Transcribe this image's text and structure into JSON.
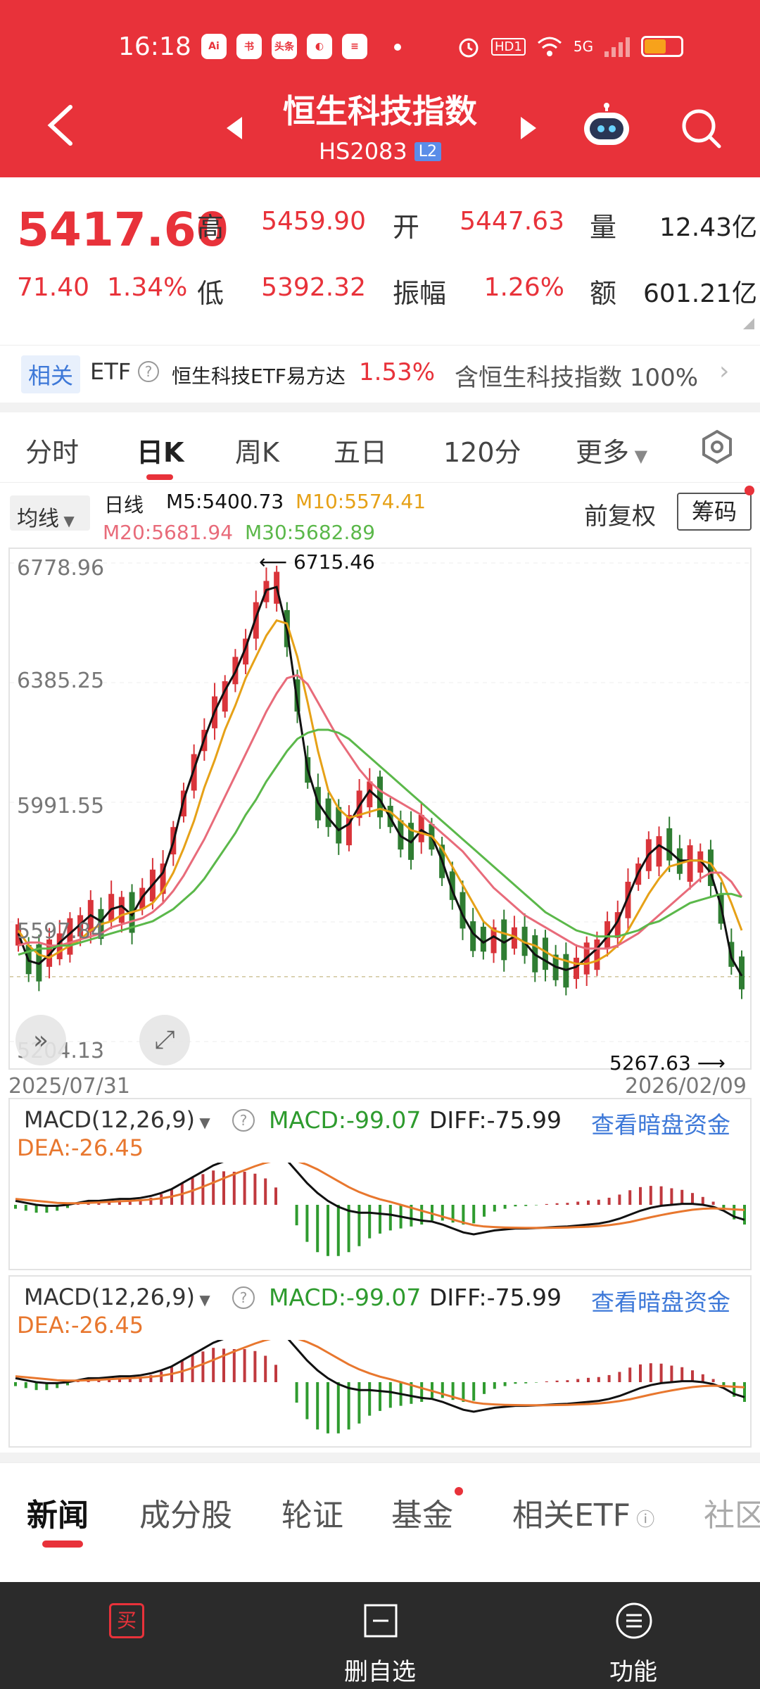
{
  "status_bar": {
    "time": "16:18",
    "apps": [
      "Ai",
      "书",
      "头条",
      "◐",
      "≡"
    ],
    "indicators": [
      "alarm-icon",
      "HD1",
      "wifi-icon",
      "5G",
      "signal-icon",
      "battery-icon"
    ],
    "hd": "HD1",
    "net": "5G"
  },
  "header": {
    "title": "恒生科技指数",
    "code": "HS2083",
    "level": "L2",
    "colors": {
      "bg": "#e8323a"
    }
  },
  "quote": {
    "price": "5417.60",
    "change": "71.40",
    "change_pct": "1.34%",
    "high_label": "高",
    "high": "5459.90",
    "open_label": "开",
    "open": "5447.63",
    "volume_label": "量",
    "volume": "12.43亿",
    "low_label": "低",
    "low": "5392.32",
    "amplitude_label": "振幅",
    "amplitude": "1.26%",
    "amount_label": "额",
    "amount": "601.21亿"
  },
  "etf": {
    "tag": "相关",
    "label": "ETF",
    "name": "恒生科技ETF易方达",
    "pct": "1.53%",
    "holding": "含恒生科技指数 100%"
  },
  "tabs": [
    "分时",
    "日K",
    "周K",
    "五日",
    "120分",
    "更多"
  ],
  "active_tab": "日K",
  "ma": {
    "button": "均线",
    "period": "日线",
    "m5": "M5:5400.73",
    "m10": "M10:5574.41",
    "m20": "M20:5681.94",
    "m30": "M30:5682.89",
    "adjust": "前复权",
    "chips": "筹码"
  },
  "chart": {
    "y_ticks": [
      "6778.96",
      "6385.25",
      "5991.55",
      "5597.84",
      "5204.13"
    ],
    "date_start": "2025/07/31",
    "date_end": "2026/02/09",
    "high_marker": "6715.46",
    "low_marker": "5267.63"
  },
  "macd": {
    "selector": "MACD(12,26,9)",
    "macd": "MACD:-99.07",
    "diff": "DIFF:-75.99",
    "dea": "DEA:-26.45",
    "link": "查看暗盘资金"
  },
  "news_tabs": [
    "新闻",
    "成分股",
    "轮证",
    "基金",
    "相关ETF",
    "社区"
  ],
  "bottom": {
    "buy": "买",
    "watch": "删自选",
    "func": "功能"
  },
  "chart_data": {
    "type": "candlestick",
    "title": "",
    "x_range": [
      "2025/07/31",
      "2026/02/09"
    ],
    "ylim": [
      5204.13,
      6778.96
    ],
    "series": [
      {
        "name": "M5",
        "color": "#111111",
        "values": [
          5560,
          5470,
          5460,
          5490,
          5530,
          5560,
          5590,
          5620,
          5600,
          5640,
          5650,
          5620,
          5680,
          5720,
          5760,
          5860,
          6000,
          6100,
          6200,
          6290,
          6360,
          6420,
          6500,
          6600,
          6690,
          6700,
          6560,
          6320,
          6100,
          5990,
          5940,
          5900,
          5920,
          5980,
          6030,
          6000,
          5940,
          5880,
          5860,
          5900,
          5880,
          5800,
          5700,
          5620,
          5560,
          5530,
          5550,
          5530,
          5550,
          5530,
          5490,
          5470,
          5450,
          5440,
          5450,
          5480,
          5510,
          5550,
          5600,
          5680,
          5760,
          5820,
          5850,
          5830,
          5800,
          5800,
          5800,
          5760,
          5650,
          5480,
          5420
        ]
      },
      {
        "name": "M10",
        "color": "#e6a117",
        "values": [
          5570,
          5520,
          5490,
          5480,
          5500,
          5520,
          5540,
          5570,
          5590,
          5600,
          5620,
          5630,
          5640,
          5660,
          5700,
          5760,
          5840,
          5930,
          6040,
          6130,
          6230,
          6310,
          6400,
          6470,
          6540,
          6590,
          6580,
          6470,
          6320,
          6160,
          6030,
          5970,
          5940,
          5950,
          5960,
          5970,
          5960,
          5930,
          5900,
          5890,
          5880,
          5840,
          5780,
          5720,
          5660,
          5600,
          5570,
          5560,
          5550,
          5530,
          5520,
          5500,
          5480,
          5470,
          5460,
          5460,
          5470,
          5490,
          5520,
          5570,
          5630,
          5690,
          5740,
          5780,
          5790,
          5800,
          5800,
          5790,
          5740,
          5660,
          5570
        ]
      },
      {
        "name": "M20",
        "color": "#e86b7a",
        "values": [
          5520,
          5530,
          5530,
          5520,
          5520,
          5530,
          5540,
          5550,
          5560,
          5580,
          5590,
          5600,
          5610,
          5630,
          5660,
          5700,
          5750,
          5810,
          5870,
          5940,
          6010,
          6080,
          6150,
          6220,
          6290,
          6350,
          6400,
          6410,
          6380,
          6320,
          6260,
          6200,
          6150,
          6100,
          6060,
          6030,
          6010,
          5990,
          5970,
          5950,
          5920,
          5890,
          5860,
          5830,
          5790,
          5750,
          5710,
          5680,
          5650,
          5620,
          5600,
          5580,
          5560,
          5540,
          5520,
          5510,
          5510,
          5510,
          5520,
          5540,
          5560,
          5590,
          5620,
          5650,
          5680,
          5710,
          5740,
          5760,
          5760,
          5730,
          5680
        ]
      },
      {
        "name": "M30",
        "color": "#5bb84a",
        "values": [
          5490,
          5500,
          5510,
          5510,
          5520,
          5520,
          5530,
          5540,
          5550,
          5560,
          5570,
          5580,
          5590,
          5600,
          5620,
          5640,
          5670,
          5700,
          5740,
          5790,
          5840,
          5890,
          5950,
          6000,
          6060,
          6110,
          6160,
          6200,
          6220,
          6230,
          6230,
          6220,
          6200,
          6170,
          6140,
          6110,
          6080,
          6050,
          6020,
          5990,
          5960,
          5930,
          5900,
          5870,
          5840,
          5810,
          5780,
          5750,
          5720,
          5690,
          5660,
          5630,
          5610,
          5590,
          5570,
          5560,
          5550,
          5550,
          5550,
          5560,
          5570,
          5590,
          5600,
          5620,
          5640,
          5660,
          5670,
          5680,
          5690,
          5690,
          5680
        ]
      }
    ]
  },
  "macd_data": {
    "diff": [
      20,
      10,
      0,
      -5,
      -5,
      0,
      10,
      20,
      20,
      25,
      30,
      30,
      35,
      45,
      60,
      80,
      110,
      140,
      170,
      200,
      220,
      240,
      260,
      275,
      280,
      270,
      230,
      170,
      110,
      60,
      20,
      -10,
      -30,
      -40,
      -40,
      -45,
      -50,
      -60,
      -70,
      -80,
      -85,
      -100,
      -120,
      -140,
      -150,
      -140,
      -130,
      -125,
      -120,
      -120,
      -118,
      -115,
      -112,
      -110,
      -105,
      -100,
      -95,
      -85,
      -70,
      -50,
      -30,
      -15,
      -5,
      0,
      5,
      5,
      0,
      -10,
      -30,
      -60,
      -76
    ],
    "dea": [
      30,
      25,
      20,
      15,
      10,
      8,
      8,
      10,
      12,
      15,
      18,
      20,
      23,
      27,
      33,
      42,
      55,
      72,
      92,
      113,
      135,
      156,
      176,
      196,
      213,
      226,
      230,
      222,
      204,
      180,
      150,
      120,
      90,
      65,
      45,
      28,
      15,
      0,
      -15,
      -30,
      -45,
      -60,
      -75,
      -90,
      -103,
      -110,
      -113,
      -115,
      -116,
      -117,
      -117,
      -117,
      -116,
      -115,
      -113,
      -111,
      -108,
      -103,
      -96,
      -87,
      -75,
      -63,
      -52,
      -42,
      -33,
      -25,
      -20,
      -18,
      -20,
      -23,
      -26
    ]
  }
}
